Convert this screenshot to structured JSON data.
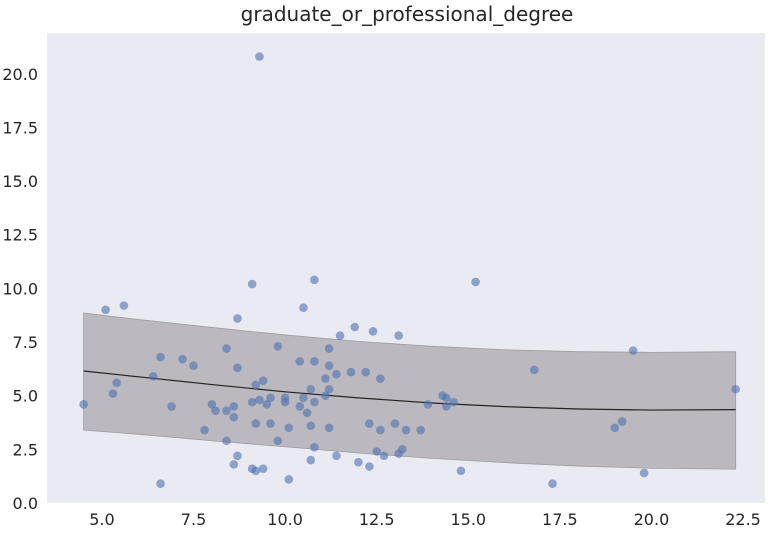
{
  "chart_data": {
    "type": "scatter",
    "title": "graduate_or_professional_degree",
    "xlabel": "",
    "ylabel": "",
    "xlim": [
      3.5,
      23.1
    ],
    "ylim": [
      0,
      21.9
    ],
    "xticks": [
      5.0,
      7.5,
      10.0,
      12.5,
      15.0,
      17.5,
      20.0,
      22.5
    ],
    "xtick_labels": [
      "5.0",
      "7.5",
      "10.0",
      "12.5",
      "15.0",
      "17.5",
      "20.0",
      "22.5"
    ],
    "yticks": [
      0.0,
      2.5,
      5.0,
      7.5,
      10.0,
      12.5,
      15.0,
      17.5,
      20.0
    ],
    "ytick_labels": [
      "0.0",
      "2.5",
      "5.0",
      "7.5",
      "10.0",
      "12.5",
      "15.0",
      "17.5",
      "20.0"
    ],
    "grid": false,
    "colors": {
      "background": "#eaeaf2",
      "points": "#4c72b0",
      "band": "#b6b4b9",
      "line": "#222222"
    },
    "points": [
      [
        4.5,
        4.6
      ],
      [
        5.1,
        9.0
      ],
      [
        5.3,
        5.1
      ],
      [
        5.4,
        5.6
      ],
      [
        5.6,
        9.2
      ],
      [
        6.4,
        5.9
      ],
      [
        6.6,
        6.8
      ],
      [
        6.6,
        0.9
      ],
      [
        6.9,
        4.5
      ],
      [
        7.2,
        6.7
      ],
      [
        7.5,
        6.4
      ],
      [
        7.8,
        3.4
      ],
      [
        8.0,
        4.6
      ],
      [
        8.1,
        4.3
      ],
      [
        8.4,
        7.2
      ],
      [
        8.4,
        4.3
      ],
      [
        8.4,
        2.9
      ],
      [
        8.6,
        4.0
      ],
      [
        8.6,
        4.5
      ],
      [
        8.6,
        1.8
      ],
      [
        8.7,
        8.6
      ],
      [
        8.7,
        6.3
      ],
      [
        8.7,
        2.2
      ],
      [
        9.1,
        10.2
      ],
      [
        9.1,
        4.7
      ],
      [
        9.1,
        1.6
      ],
      [
        9.2,
        5.5
      ],
      [
        9.2,
        3.7
      ],
      [
        9.2,
        1.5
      ],
      [
        9.3,
        20.8
      ],
      [
        9.3,
        4.8
      ],
      [
        9.4,
        5.7
      ],
      [
        9.4,
        1.6
      ],
      [
        9.5,
        4.6
      ],
      [
        9.6,
        4.9
      ],
      [
        9.6,
        3.7
      ],
      [
        9.8,
        7.3
      ],
      [
        9.8,
        2.9
      ],
      [
        10.0,
        4.9
      ],
      [
        10.0,
        4.7
      ],
      [
        10.1,
        3.5
      ],
      [
        10.1,
        1.1
      ],
      [
        10.4,
        6.6
      ],
      [
        10.4,
        4.5
      ],
      [
        10.5,
        9.1
      ],
      [
        10.5,
        4.9
      ],
      [
        10.6,
        4.2
      ],
      [
        10.7,
        5.3
      ],
      [
        10.7,
        2.0
      ],
      [
        10.7,
        3.6
      ],
      [
        10.8,
        10.4
      ],
      [
        10.8,
        6.6
      ],
      [
        10.8,
        4.7
      ],
      [
        10.8,
        2.6
      ],
      [
        11.1,
        5.8
      ],
      [
        11.1,
        5.0
      ],
      [
        11.2,
        7.2
      ],
      [
        11.2,
        6.4
      ],
      [
        11.2,
        5.3
      ],
      [
        11.2,
        3.5
      ],
      [
        11.4,
        6.0
      ],
      [
        11.4,
        2.2
      ],
      [
        11.5,
        7.8
      ],
      [
        11.8,
        6.1
      ],
      [
        11.9,
        8.2
      ],
      [
        12.0,
        1.9
      ],
      [
        12.2,
        6.1
      ],
      [
        12.3,
        3.7
      ],
      [
        12.3,
        1.7
      ],
      [
        12.4,
        8.0
      ],
      [
        12.5,
        2.4
      ],
      [
        12.6,
        5.8
      ],
      [
        12.6,
        3.4
      ],
      [
        12.7,
        2.2
      ],
      [
        13.0,
        3.7
      ],
      [
        13.1,
        7.8
      ],
      [
        13.1,
        2.3
      ],
      [
        13.2,
        2.5
      ],
      [
        13.3,
        3.4
      ],
      [
        13.7,
        3.4
      ],
      [
        13.9,
        4.6
      ],
      [
        14.3,
        5.0
      ],
      [
        14.4,
        4.9
      ],
      [
        14.4,
        4.5
      ],
      [
        14.6,
        4.7
      ],
      [
        14.8,
        1.5
      ],
      [
        15.2,
        10.3
      ],
      [
        16.8,
        6.2
      ],
      [
        17.3,
        0.9
      ],
      [
        19.0,
        3.5
      ],
      [
        19.2,
        3.8
      ],
      [
        19.5,
        7.1
      ],
      [
        19.8,
        1.4
      ],
      [
        22.3,
        5.3
      ]
    ],
    "fit_line": [
      [
        4.5,
        6.15
      ],
      [
        6.0,
        5.88
      ],
      [
        8.0,
        5.52
      ],
      [
        10.0,
        5.18
      ],
      [
        12.0,
        4.9
      ],
      [
        14.0,
        4.66
      ],
      [
        16.0,
        4.49
      ],
      [
        18.0,
        4.38
      ],
      [
        20.0,
        4.33
      ],
      [
        22.3,
        4.35
      ]
    ],
    "band_upper": [
      [
        4.5,
        8.85
      ],
      [
        6.0,
        8.55
      ],
      [
        8.0,
        8.18
      ],
      [
        10.0,
        7.83
      ],
      [
        12.0,
        7.53
      ],
      [
        14.0,
        7.3
      ],
      [
        16.0,
        7.14
      ],
      [
        18.0,
        7.05
      ],
      [
        20.0,
        7.02
      ],
      [
        22.3,
        7.05
      ]
    ],
    "band_lower": [
      [
        4.5,
        3.4
      ],
      [
        6.0,
        3.2
      ],
      [
        8.0,
        2.9
      ],
      [
        10.0,
        2.62
      ],
      [
        12.0,
        2.33
      ],
      [
        14.0,
        2.08
      ],
      [
        16.0,
        1.88
      ],
      [
        18.0,
        1.72
      ],
      [
        20.0,
        1.62
      ],
      [
        22.3,
        1.58
      ]
    ]
  }
}
